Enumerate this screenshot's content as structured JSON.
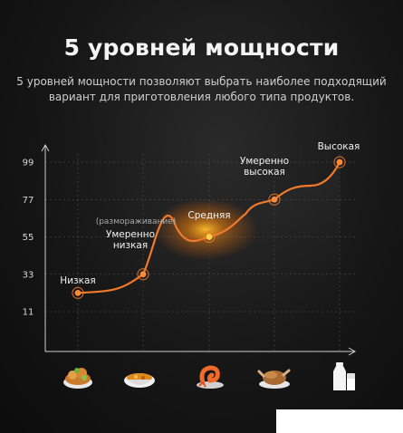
{
  "title": "5 уровней мощности",
  "subtitle": {
    "line1": "5 уровней мощности позволяют выбрать наиболее подходящий",
    "line2": "вариант для приготовления любого типа продуктов."
  },
  "chart_data": {
    "type": "line",
    "y_ticks": [
      "99",
      "77",
      "55",
      "33",
      "11"
    ],
    "ylim": [
      0,
      110
    ],
    "grid": true,
    "points": [
      {
        "lines": [
          "Низкая"
        ],
        "y": 22,
        "note": ""
      },
      {
        "lines": [
          "Умеренно",
          "низкая"
        ],
        "y": 33,
        "note": "(размораживание)"
      },
      {
        "lines": [
          "Средняя"
        ],
        "y": 55,
        "note": ""
      },
      {
        "lines": [
          "Умеренно",
          "высокая"
        ],
        "y": 77,
        "note": ""
      },
      {
        "lines": [
          "Высокая"
        ],
        "y": 99,
        "note": ""
      }
    ],
    "color": "#f07a2a",
    "glow_color": "#ffb020"
  },
  "icons": [
    {
      "name": "salad-bowl-icon"
    },
    {
      "name": "soup-bowl-icon"
    },
    {
      "name": "shrimp-icon"
    },
    {
      "name": "roast-chicken-icon"
    },
    {
      "name": "milk-bottle-icon"
    }
  ]
}
